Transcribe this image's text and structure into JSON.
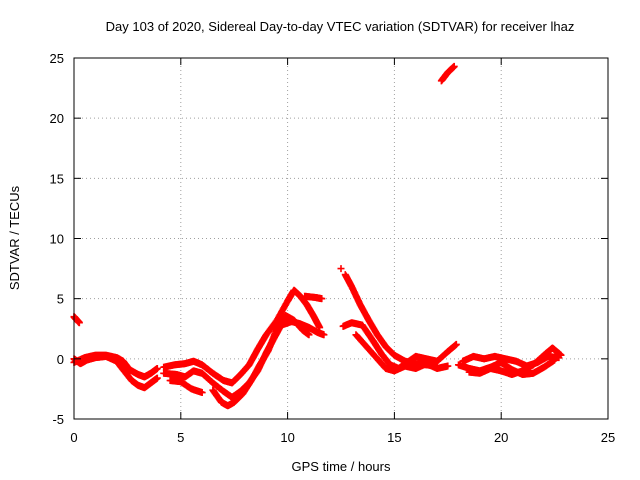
{
  "chart_data": {
    "type": "scatter",
    "title": "Day 103 of 2020, Sidereal Day-to-day VTEC variation (SDTVAR) for receiver lhaz",
    "xlabel": "GPS time / hours",
    "ylabel": "SDTVAR / TECUs",
    "xlim": [
      0,
      25
    ],
    "ylim": [
      -5,
      25
    ],
    "xticks": [
      "0",
      "5",
      "10",
      "15",
      "20",
      "25"
    ],
    "yticks": [
      "-5",
      "0",
      "5",
      "10",
      "15",
      "20",
      "25"
    ],
    "grid": true,
    "marker": "plus",
    "series": [
      {
        "name": "SDTVAR",
        "color": "#ff0000",
        "segments": [
          [
            [
              0.0,
              3.5
            ],
            [
              0.1,
              3.3
            ],
            [
              0.25,
              3.0
            ]
          ],
          [
            [
              0.0,
              0.0
            ],
            [
              0.3,
              -0.4
            ],
            [
              0.6,
              -0.1
            ],
            [
              1.0,
              0.1
            ],
            [
              1.5,
              0.2
            ],
            [
              2.0,
              -0.2
            ],
            [
              2.3,
              -0.9
            ],
            [
              2.7,
              -1.8
            ],
            [
              3.0,
              -2.2
            ],
            [
              3.3,
              -2.4
            ],
            [
              3.6,
              -2.0
            ],
            [
              3.9,
              -1.6
            ]
          ],
          [
            [
              0.0,
              -0.3
            ],
            [
              0.5,
              0.1
            ],
            [
              1.0,
              0.3
            ],
            [
              1.5,
              0.3
            ],
            [
              2.0,
              0.1
            ],
            [
              2.3,
              -0.2
            ],
            [
              2.6,
              -0.9
            ],
            [
              3.0,
              -1.3
            ],
            [
              3.3,
              -1.5
            ],
            [
              3.6,
              -1.2
            ],
            [
              3.9,
              -0.8
            ]
          ],
          [
            [
              4.2,
              -1.2
            ],
            [
              4.8,
              -1.3
            ],
            [
              5.2,
              -1.5
            ],
            [
              5.6,
              -1.0
            ],
            [
              6.0,
              -1.2
            ],
            [
              6.5,
              -2.0
            ],
            [
              7.0,
              -2.7
            ],
            [
              7.4,
              -3.2
            ],
            [
              7.8,
              -2.7
            ],
            [
              8.2,
              -2.0
            ],
            [
              8.6,
              -1.0
            ],
            [
              9.0,
              0.5
            ],
            [
              9.3,
              1.5
            ],
            [
              9.7,
              2.8
            ],
            [
              10.2,
              3.1
            ],
            [
              10.6,
              2.9
            ],
            [
              11.0,
              2.6
            ],
            [
              11.4,
              2.2
            ],
            [
              11.7,
              2.0
            ]
          ],
          [
            [
              4.2,
              -0.7
            ],
            [
              4.7,
              -0.5
            ],
            [
              5.2,
              -0.4
            ],
            [
              5.6,
              -0.2
            ],
            [
              6.0,
              -0.5
            ],
            [
              6.5,
              -1.2
            ],
            [
              7.0,
              -1.8
            ],
            [
              7.4,
              -2.0
            ],
            [
              7.8,
              -1.3
            ],
            [
              8.2,
              -0.5
            ],
            [
              8.6,
              0.8
            ],
            [
              9.0,
              2.0
            ],
            [
              9.5,
              3.2
            ],
            [
              10.0,
              4.8
            ],
            [
              10.3,
              5.7
            ],
            [
              10.6,
              5.2
            ],
            [
              10.9,
              4.5
            ],
            [
              11.2,
              3.6
            ],
            [
              11.5,
              2.6
            ]
          ],
          [
            [
              4.5,
              -1.8
            ],
            [
              5.0,
              -1.9
            ],
            [
              5.5,
              -2.5
            ],
            [
              6.0,
              -2.8
            ]
          ],
          [
            [
              6.5,
              -2.6
            ],
            [
              6.9,
              -3.6
            ],
            [
              7.2,
              -3.9
            ],
            [
              7.5,
              -3.6
            ],
            [
              7.9,
              -2.9
            ],
            [
              8.3,
              -1.8
            ],
            [
              8.7,
              -0.5
            ],
            [
              9.1,
              0.7
            ],
            [
              9.5,
              2.5
            ],
            [
              9.9,
              3.6
            ],
            [
              10.3,
              3.2
            ],
            [
              10.7,
              2.4
            ],
            [
              11.0,
              2.0
            ]
          ],
          [
            [
              10.8,
              5.2
            ],
            [
              11.3,
              5.1
            ],
            [
              11.6,
              5.0
            ]
          ],
          [
            [
              12.5,
              7.5
            ]
          ],
          [
            [
              12.7,
              7.0
            ],
            [
              13.0,
              6.0
            ],
            [
              13.4,
              4.5
            ],
            [
              13.8,
              3.2
            ],
            [
              14.2,
              2.0
            ],
            [
              14.6,
              1.0
            ],
            [
              15.0,
              0.3
            ],
            [
              15.5,
              -0.2
            ],
            [
              16.0,
              -0.4
            ],
            [
              16.5,
              -0.5
            ],
            [
              17.0,
              -0.6
            ]
          ],
          [
            [
              12.6,
              2.7
            ],
            [
              13.0,
              3.0
            ],
            [
              13.5,
              2.8
            ],
            [
              14.0,
              1.5
            ],
            [
              14.4,
              0.4
            ],
            [
              14.8,
              -0.5
            ],
            [
              15.2,
              -0.8
            ],
            [
              15.6,
              -0.3
            ],
            [
              16.0,
              0.2
            ],
            [
              16.5,
              0.0
            ],
            [
              17.0,
              -0.2
            ],
            [
              17.5,
              0.6
            ],
            [
              17.9,
              1.2
            ]
          ],
          [
            [
              13.2,
              2.0
            ],
            [
              13.7,
              1.0
            ],
            [
              14.2,
              0.0
            ],
            [
              14.6,
              -0.8
            ],
            [
              15.0,
              -1.0
            ],
            [
              15.5,
              -0.6
            ],
            [
              16.0,
              -0.8
            ],
            [
              16.5,
              -0.4
            ],
            [
              17.0,
              -0.8
            ],
            [
              17.5,
              -0.6
            ]
          ],
          [
            [
              18.0,
              -0.5
            ],
            [
              18.5,
              -0.8
            ],
            [
              19.0,
              -1.0
            ],
            [
              19.5,
              -0.7
            ],
            [
              20.0,
              -0.3
            ],
            [
              20.5,
              -0.9
            ],
            [
              21.0,
              -1.3
            ],
            [
              21.5,
              -1.2
            ],
            [
              22.0,
              -0.7
            ],
            [
              22.5,
              -0.1
            ]
          ],
          [
            [
              18.2,
              -0.2
            ],
            [
              18.7,
              0.2
            ],
            [
              19.2,
              0.0
            ],
            [
              19.7,
              0.2
            ],
            [
              20.2,
              0.0
            ],
            [
              20.7,
              -0.2
            ],
            [
              21.2,
              -0.6
            ],
            [
              21.7,
              -0.3
            ],
            [
              22.2,
              0.2
            ],
            [
              22.7,
              0.1
            ]
          ],
          [
            [
              18.5,
              -1.1
            ],
            [
              19.0,
              -1.2
            ],
            [
              19.5,
              -0.8
            ],
            [
              20.0,
              -1.0
            ],
            [
              20.5,
              -1.3
            ],
            [
              21.0,
              -1.0
            ],
            [
              21.5,
              -0.5
            ],
            [
              22.0,
              0.3
            ],
            [
              22.4,
              0.9
            ],
            [
              22.8,
              0.3
            ]
          ],
          [
            [
              17.2,
              23.1
            ],
            [
              17.5,
              23.8
            ],
            [
              17.8,
              24.3
            ]
          ]
        ]
      }
    ]
  }
}
